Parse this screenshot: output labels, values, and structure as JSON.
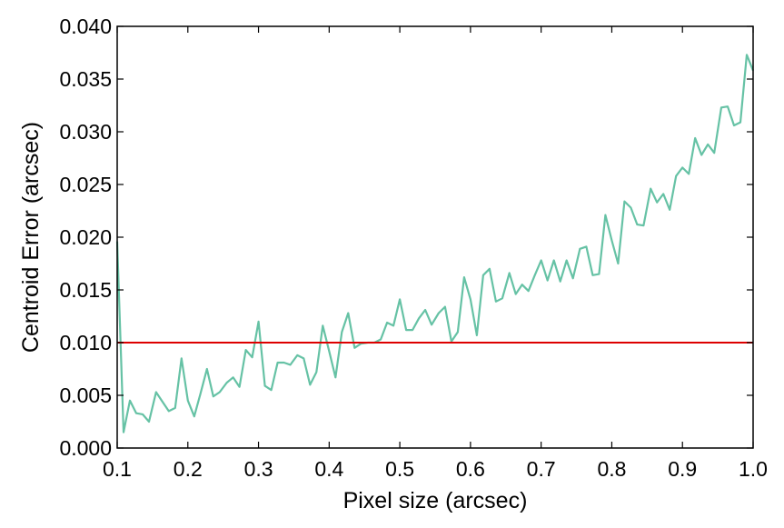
{
  "chart_data": {
    "type": "line",
    "xlabel": "Pixel size (arcsec)",
    "ylabel": "Centroid Error (arcsec)",
    "xlim": [
      0.1,
      1.0
    ],
    "ylim": [
      0.0,
      0.04
    ],
    "xticks": [
      0.1,
      0.2,
      0.3,
      0.4,
      0.5,
      0.6,
      0.7,
      0.8,
      0.9,
      1.0
    ],
    "xtick_labels": [
      "0.1",
      "0.2",
      "0.3",
      "0.4",
      "0.5",
      "0.6",
      "0.7",
      "0.8",
      "0.9",
      "1.0"
    ],
    "yticks": [
      0.0,
      0.005,
      0.01,
      0.015,
      0.02,
      0.025,
      0.03,
      0.035,
      0.04
    ],
    "ytick_labels": [
      "0.000",
      "0.005",
      "0.010",
      "0.015",
      "0.020",
      "0.025",
      "0.030",
      "0.035",
      "0.040"
    ],
    "grid": false,
    "series": [
      {
        "color": "#66c2a5",
        "x": [
          0.1,
          0.109,
          0.118,
          0.127,
          0.136,
          0.145,
          0.155,
          0.164,
          0.173,
          0.182,
          0.191,
          0.2,
          0.209,
          0.218,
          0.227,
          0.236,
          0.245,
          0.255,
          0.264,
          0.273,
          0.282,
          0.291,
          0.3,
          0.309,
          0.318,
          0.327,
          0.336,
          0.345,
          0.355,
          0.364,
          0.373,
          0.382,
          0.391,
          0.4,
          0.409,
          0.418,
          0.427,
          0.436,
          0.445,
          0.455,
          0.464,
          0.473,
          0.482,
          0.491,
          0.5,
          0.509,
          0.518,
          0.527,
          0.536,
          0.545,
          0.555,
          0.564,
          0.573,
          0.582,
          0.591,
          0.6,
          0.609,
          0.618,
          0.627,
          0.636,
          0.645,
          0.655,
          0.664,
          0.673,
          0.682,
          0.691,
          0.7,
          0.709,
          0.718,
          0.727,
          0.736,
          0.745,
          0.755,
          0.764,
          0.773,
          0.782,
          0.791,
          0.8,
          0.809,
          0.818,
          0.827,
          0.836,
          0.845,
          0.855,
          0.864,
          0.873,
          0.882,
          0.891,
          0.9,
          0.909,
          0.918,
          0.927,
          0.936,
          0.945,
          0.955,
          0.964,
          0.973,
          0.982,
          0.991,
          1.0
        ],
        "y": [
          0.0196,
          0.0015,
          0.0045,
          0.0033,
          0.0032,
          0.0025,
          0.0053,
          0.0044,
          0.0035,
          0.0038,
          0.0085,
          0.0045,
          0.003,
          0.0052,
          0.0075,
          0.0049,
          0.0053,
          0.0062,
          0.0067,
          0.0058,
          0.0093,
          0.0086,
          0.012,
          0.0059,
          0.0055,
          0.0081,
          0.0081,
          0.0079,
          0.0088,
          0.0085,
          0.006,
          0.0072,
          0.0116,
          0.0092,
          0.0067,
          0.011,
          0.0128,
          0.0095,
          0.0099,
          0.01,
          0.01,
          0.0103,
          0.0119,
          0.0116,
          0.0141,
          0.0112,
          0.0112,
          0.0123,
          0.0131,
          0.0117,
          0.0128,
          0.0134,
          0.0101,
          0.011,
          0.0162,
          0.0141,
          0.0107,
          0.0164,
          0.017,
          0.0139,
          0.0142,
          0.0166,
          0.0146,
          0.0155,
          0.0149,
          0.0164,
          0.0178,
          0.0159,
          0.0178,
          0.0158,
          0.0178,
          0.0161,
          0.0189,
          0.0191,
          0.0164,
          0.0165,
          0.0221,
          0.0197,
          0.0175,
          0.0234,
          0.0228,
          0.0212,
          0.0211,
          0.0246,
          0.0233,
          0.0241,
          0.0226,
          0.0258,
          0.0266,
          0.026,
          0.0294,
          0.0278,
          0.0288,
          0.028,
          0.0323,
          0.0324,
          0.0306,
          0.0309,
          0.0373,
          0.0358
        ]
      }
    ],
    "hlines": [
      {
        "y": 0.01,
        "color": "#dd0000"
      }
    ]
  }
}
